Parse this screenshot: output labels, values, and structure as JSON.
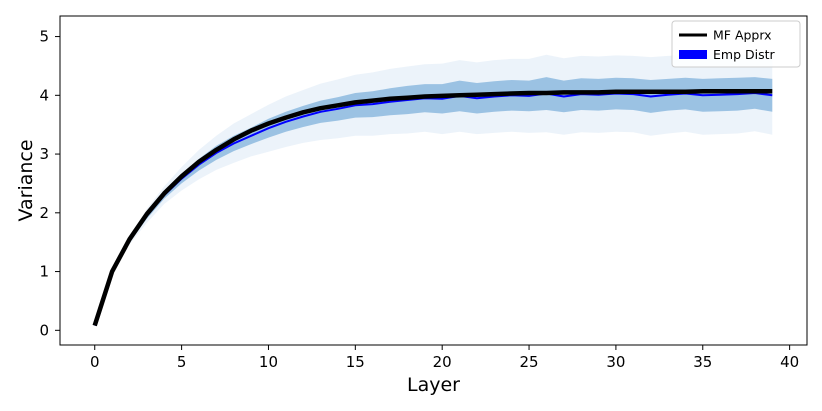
{
  "chart_data": {
    "type": "line",
    "title": "",
    "xlabel": "Layer",
    "ylabel": "Variance",
    "xlim": [
      -2,
      41
    ],
    "ylim": [
      -0.25,
      5.35
    ],
    "xticks": [
      0,
      5,
      10,
      15,
      20,
      25,
      30,
      35,
      40
    ],
    "yticks": [
      0,
      1,
      2,
      3,
      4,
      5
    ],
    "grid": false,
    "legend_position": "top-right",
    "x": [
      0,
      1,
      2,
      3,
      4,
      5,
      6,
      7,
      8,
      9,
      10,
      11,
      12,
      13,
      14,
      15,
      16,
      17,
      18,
      19,
      20,
      21,
      22,
      23,
      24,
      25,
      26,
      27,
      28,
      29,
      30,
      31,
      32,
      33,
      34,
      35,
      36,
      37,
      38,
      39
    ],
    "series": [
      {
        "name": "MF Apprx",
        "kind": "line",
        "color": "#000000",
        "values": [
          0.08,
          1.0,
          1.55,
          1.98,
          2.33,
          2.62,
          2.87,
          3.07,
          3.25,
          3.4,
          3.52,
          3.62,
          3.71,
          3.78,
          3.83,
          3.88,
          3.91,
          3.94,
          3.96,
          3.98,
          3.99,
          4.0,
          4.01,
          4.02,
          4.03,
          4.04,
          4.04,
          4.05,
          4.05,
          4.05,
          4.06,
          4.06,
          4.06,
          4.06,
          4.06,
          4.07,
          4.07,
          4.07,
          4.07,
          4.07
        ]
      },
      {
        "name": "Emp Distr",
        "kind": "band",
        "color": "#0000ff",
        "mean": [
          0.08,
          0.99,
          1.53,
          1.95,
          2.3,
          2.58,
          2.82,
          3.02,
          3.18,
          3.31,
          3.44,
          3.55,
          3.64,
          3.72,
          3.77,
          3.83,
          3.85,
          3.89,
          3.92,
          3.95,
          3.94,
          3.99,
          3.95,
          3.98,
          4.0,
          3.99,
          4.03,
          3.98,
          4.02,
          4.01,
          4.03,
          4.02,
          3.98,
          4.01,
          4.03,
          4.0,
          4.01,
          4.02,
          4.04,
          4.0
        ],
        "inner_band": {
          "color": "#3a87c8",
          "lower": [
            0.08,
            0.98,
            1.5,
            1.9,
            2.24,
            2.5,
            2.72,
            2.9,
            3.05,
            3.17,
            3.28,
            3.38,
            3.46,
            3.53,
            3.57,
            3.62,
            3.63,
            3.66,
            3.68,
            3.71,
            3.69,
            3.73,
            3.69,
            3.72,
            3.74,
            3.73,
            3.75,
            3.71,
            3.75,
            3.74,
            3.76,
            3.75,
            3.7,
            3.74,
            3.76,
            3.72,
            3.73,
            3.74,
            3.77,
            3.72
          ],
          "upper": [
            0.08,
            1.01,
            1.56,
            2.0,
            2.36,
            2.66,
            2.92,
            3.14,
            3.31,
            3.45,
            3.6,
            3.72,
            3.82,
            3.91,
            3.97,
            4.04,
            4.07,
            4.12,
            4.16,
            4.19,
            4.19,
            4.25,
            4.21,
            4.24,
            4.26,
            4.25,
            4.31,
            4.25,
            4.29,
            4.28,
            4.3,
            4.29,
            4.26,
            4.28,
            4.3,
            4.28,
            4.29,
            4.3,
            4.31,
            4.28
          ]
        },
        "outer_band": {
          "color": "#c8dcf2",
          "lower": [
            0.08,
            0.96,
            1.46,
            1.83,
            2.15,
            2.38,
            2.57,
            2.73,
            2.85,
            2.96,
            3.04,
            3.12,
            3.19,
            3.24,
            3.27,
            3.31,
            3.31,
            3.34,
            3.35,
            3.38,
            3.34,
            3.38,
            3.34,
            3.36,
            3.38,
            3.36,
            3.37,
            3.33,
            3.37,
            3.36,
            3.38,
            3.37,
            3.31,
            3.35,
            3.38,
            3.33,
            3.34,
            3.35,
            3.39,
            3.33
          ],
          "upper": [
            0.08,
            1.02,
            1.6,
            2.07,
            2.45,
            2.78,
            3.07,
            3.31,
            3.52,
            3.68,
            3.84,
            3.98,
            4.09,
            4.2,
            4.27,
            4.35,
            4.39,
            4.45,
            4.49,
            4.53,
            4.54,
            4.6,
            4.56,
            4.6,
            4.62,
            4.62,
            4.69,
            4.63,
            4.67,
            4.66,
            4.68,
            4.67,
            4.65,
            4.67,
            4.68,
            4.67,
            4.68,
            4.69,
            4.69,
            4.67
          ]
        }
      }
    ]
  }
}
